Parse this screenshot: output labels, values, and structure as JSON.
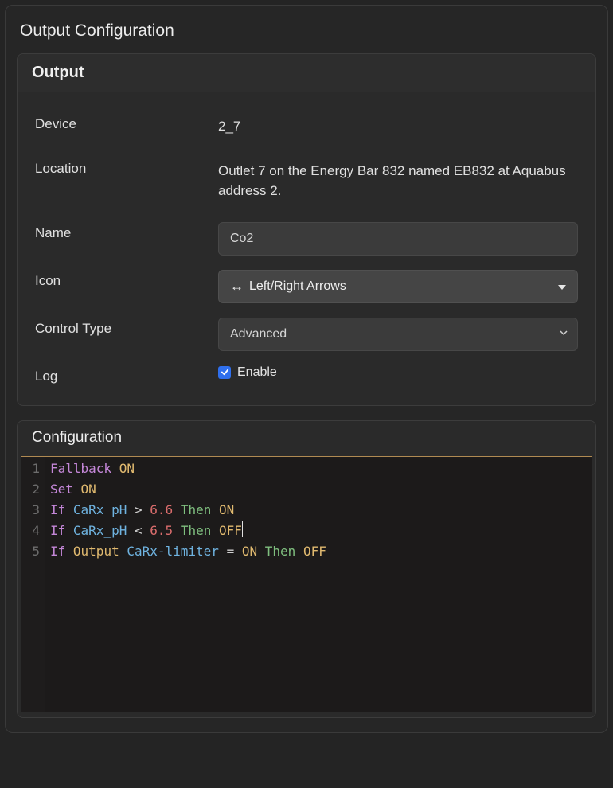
{
  "page": {
    "title": "Output Configuration"
  },
  "output_card": {
    "title": "Output",
    "device_label": "Device",
    "device_value": "2_7",
    "location_label": "Location",
    "location_value": "Outlet 7 on the Energy Bar 832 named EB832 at Aquabus address 2.",
    "name_label": "Name",
    "name_value": "Co2",
    "icon_label": "Icon",
    "icon_glyph": "↔",
    "icon_value": "Left/Right Arrows",
    "control_type_label": "Control Type",
    "control_type_value": "Advanced",
    "log_label": "Log",
    "log_checked": true,
    "log_checkbox_text": "Enable"
  },
  "config_card": {
    "title": "Configuration",
    "line_numbers": [
      "1",
      "2",
      "3",
      "4",
      "5"
    ],
    "code_lines": [
      [
        {
          "t": "Fallback",
          "c": "tok-kw"
        },
        {
          "t": " ",
          "c": ""
        },
        {
          "t": "ON",
          "c": "tok-state"
        }
      ],
      [
        {
          "t": "Set",
          "c": "tok-kw"
        },
        {
          "t": " ",
          "c": ""
        },
        {
          "t": "ON",
          "c": "tok-state"
        }
      ],
      [
        {
          "t": "If",
          "c": "tok-kw"
        },
        {
          "t": " ",
          "c": ""
        },
        {
          "t": "CaRx_pH",
          "c": "tok-var"
        },
        {
          "t": " ",
          "c": ""
        },
        {
          "t": ">",
          "c": "tok-op"
        },
        {
          "t": " ",
          "c": ""
        },
        {
          "t": "6.6",
          "c": "tok-num"
        },
        {
          "t": " ",
          "c": ""
        },
        {
          "t": "Then",
          "c": "tok-then"
        },
        {
          "t": " ",
          "c": ""
        },
        {
          "t": "ON",
          "c": "tok-state"
        }
      ],
      [
        {
          "t": "If",
          "c": "tok-kw"
        },
        {
          "t": " ",
          "c": ""
        },
        {
          "t": "CaRx_pH",
          "c": "tok-var"
        },
        {
          "t": " ",
          "c": ""
        },
        {
          "t": "<",
          "c": "tok-op"
        },
        {
          "t": " ",
          "c": ""
        },
        {
          "t": "6.5",
          "c": "tok-num"
        },
        {
          "t": " ",
          "c": ""
        },
        {
          "t": "Then",
          "c": "tok-then"
        },
        {
          "t": " ",
          "c": ""
        },
        {
          "t": "OFF",
          "c": "tok-state",
          "caret": true
        }
      ],
      [
        {
          "t": "If",
          "c": "tok-kw"
        },
        {
          "t": " ",
          "c": ""
        },
        {
          "t": "Output",
          "c": "tok-state"
        },
        {
          "t": " ",
          "c": ""
        },
        {
          "t": "CaRx-limiter",
          "c": "tok-var"
        },
        {
          "t": " ",
          "c": ""
        },
        {
          "t": "=",
          "c": "tok-op"
        },
        {
          "t": " ",
          "c": ""
        },
        {
          "t": "ON",
          "c": "tok-state"
        },
        {
          "t": " ",
          "c": ""
        },
        {
          "t": "Then",
          "c": "tok-then"
        },
        {
          "t": " ",
          "c": ""
        },
        {
          "t": "OFF",
          "c": "tok-state"
        }
      ]
    ]
  },
  "colors": {
    "page_bg": "#242424",
    "panel_border": "#3a3a3a",
    "card_bg": "#2a2a2a",
    "card_border": "#3c3c3c",
    "input_bg": "#3b3b3b",
    "picker_bg": "#454545",
    "checkbox_bg": "#2f6fed",
    "editor_bg": "#1c1a1a",
    "editor_border": "#b08a52",
    "gutter_text": "#6d6d6d",
    "tok_kw": "#c487d8",
    "tok_state": "#e0b96f",
    "tok_var": "#6fb3e0",
    "tok_num": "#d96c6c",
    "tok_then": "#7fbf7f"
  }
}
